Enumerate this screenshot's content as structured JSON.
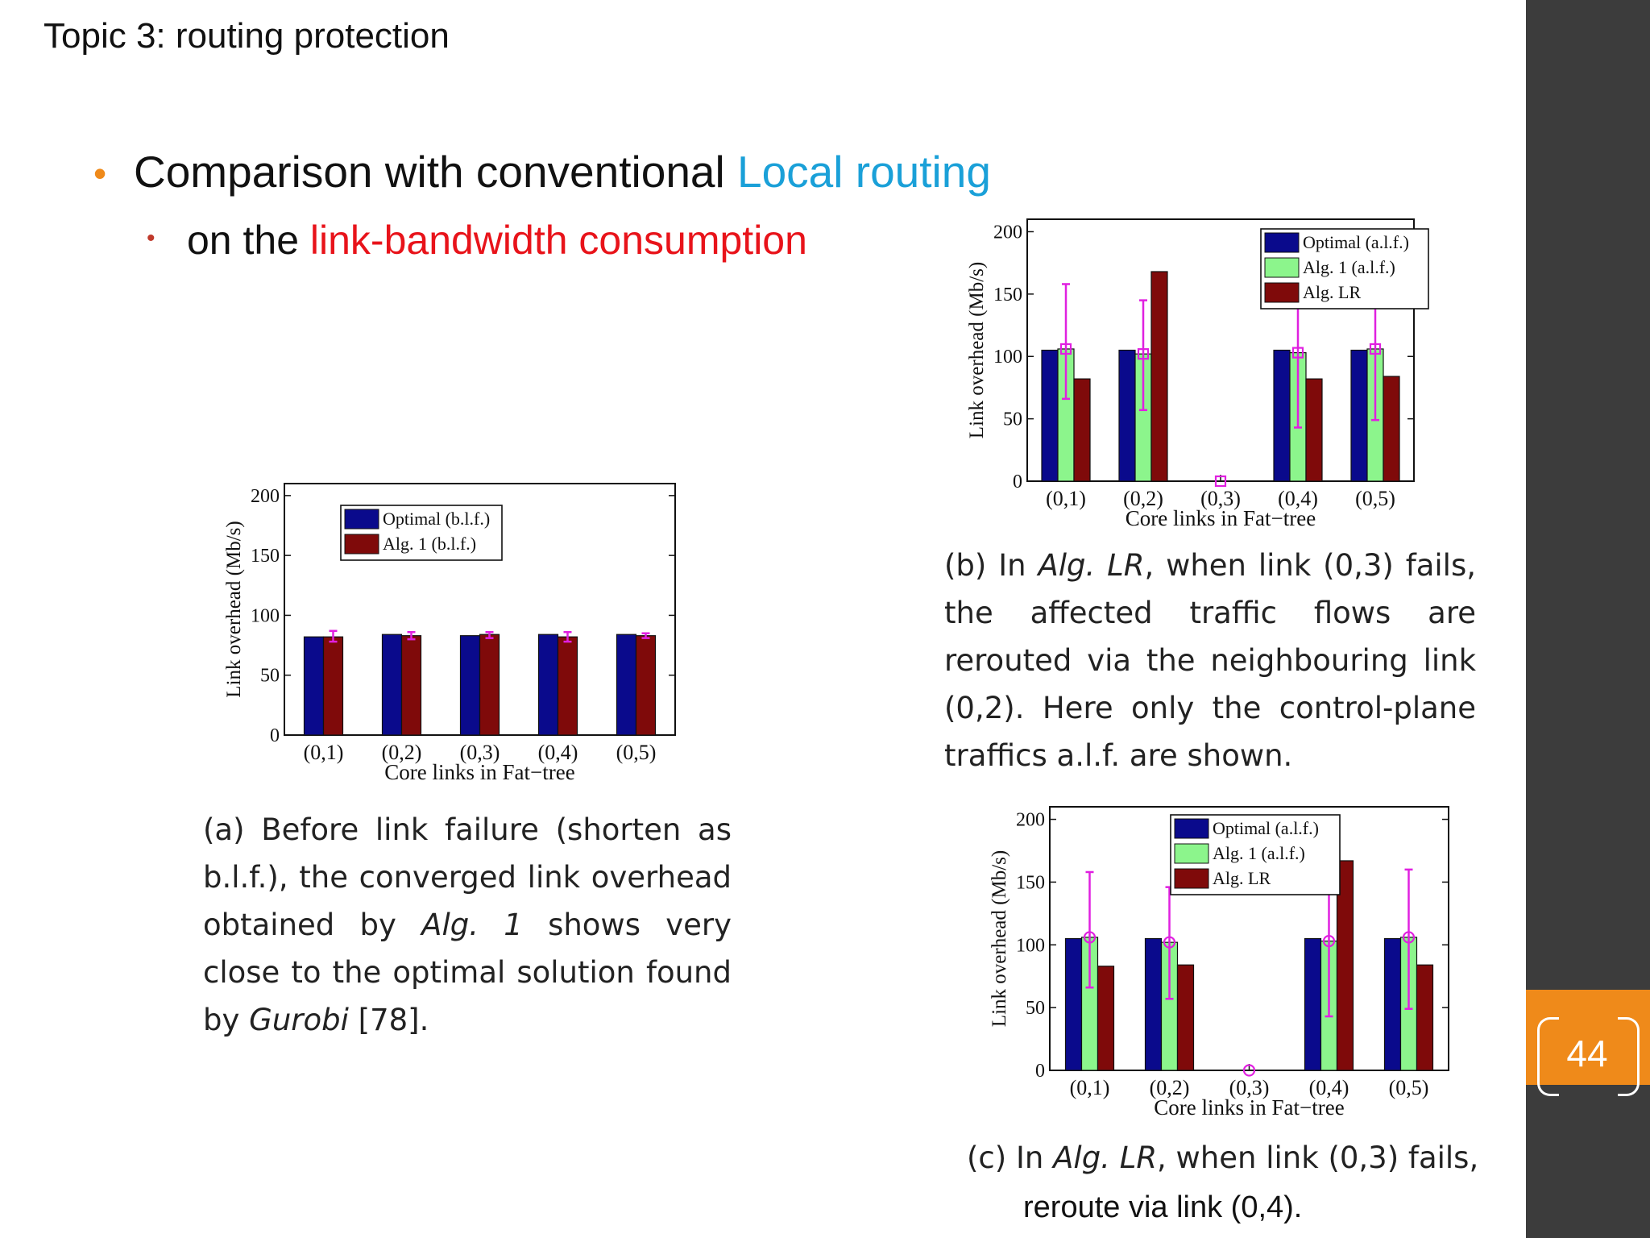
{
  "slide": {
    "topic": "Topic 3:  routing protection",
    "bullet1_prefix": "Comparison with conventional ",
    "bullet1_highlight": "Local routing",
    "bullet2_prefix": "on the ",
    "bullet2_highlight": "link-bandwidth consumption",
    "page_number": "44",
    "colors": {
      "orange": "#ef8a1a",
      "blue_highlight": "#1aa0d8",
      "red_highlight": "#e8131a",
      "sidebar": "#3c3c3c"
    }
  },
  "captions": {
    "a": {
      "p1": "(a) Before link failure (shorten as b.l.f.), the converged link overhead obtained by ",
      "alg": "Alg. 1",
      "p2": " shows very close to the optimal solution found by ",
      "solver": "Gurobi",
      "p3": " [78]."
    },
    "b": {
      "p1": "(b) In ",
      "alg": "Alg. LR",
      "p2": ", when link (0,3) fails, the affected traffic flows are rerouted via the neighbouring link (0,2).  Here only the control-plane traffics a.l.f. are shown."
    },
    "c": {
      "p1": "(c) In ",
      "alg": "Alg. LR",
      "p2": ", when link (0,3) fails,",
      "line2": "reroute via link (0,4)."
    }
  },
  "chart_data": [
    {
      "id": "a",
      "type": "bar",
      "categories": [
        "(0,1)",
        "(0,2)",
        "(0,3)",
        "(0,4)",
        "(0,5)"
      ],
      "xlabel": "Core links in Fat−tree",
      "ylabel": "Link overhead (Mb/s)",
      "ylim": [
        0,
        210
      ],
      "yticks": [
        0,
        50,
        100,
        150,
        200
      ],
      "legend_position": "top-left",
      "series": [
        {
          "name": "Optimal (b.l.f.)",
          "color": "#0a0a8c",
          "values": [
            82,
            84,
            83,
            84,
            84
          ]
        },
        {
          "name": "Alg. 1 (b.l.f.)",
          "color": "#7f0a0a",
          "values": [
            82,
            83,
            84,
            82,
            83
          ],
          "error": [
            [
              78,
              87
            ],
            [
              80,
              86
            ],
            [
              81,
              86
            ],
            [
              78,
              86
            ],
            [
              81,
              85
            ]
          ],
          "error_color": "#e020e0"
        }
      ]
    },
    {
      "id": "b",
      "type": "bar",
      "categories": [
        "(0,1)",
        "(0,2)",
        "(0,3)",
        "(0,4)",
        "(0,5)"
      ],
      "xlabel": "Core links in Fat−tree",
      "ylabel": "Link overhead (Mb/s)",
      "ylim": [
        0,
        210
      ],
      "yticks": [
        0,
        50,
        100,
        150,
        200
      ],
      "legend_position": "top-right",
      "series": [
        {
          "name": "Optimal (a.l.f.)",
          "color": "#0a0a8c",
          "values": [
            105,
            105,
            0,
            105,
            105
          ]
        },
        {
          "name": "Alg. 1 (a.l.f.)",
          "color": "#8cf58c",
          "values": [
            106,
            102,
            0,
            103,
            106
          ],
          "error": [
            [
              66,
              158
            ],
            [
              57,
              145
            ],
            [
              0,
              0
            ],
            [
              43,
              149
            ],
            [
              49,
              159
            ]
          ],
          "error_color": "#e020e0",
          "marker": "square"
        },
        {
          "name": "Alg. LR",
          "color": "#7f0a0a",
          "values": [
            82,
            168,
            0,
            82,
            84
          ]
        }
      ]
    },
    {
      "id": "c",
      "type": "bar",
      "categories": [
        "(0,1)",
        "(0,2)",
        "(0,3)",
        "(0,4)",
        "(0,5)"
      ],
      "xlabel": "Core links in Fat−tree",
      "ylabel": "Link overhead (Mb/s)",
      "ylim": [
        0,
        210
      ],
      "yticks": [
        0,
        50,
        100,
        150,
        200
      ],
      "legend_position": "top-center",
      "series": [
        {
          "name": "Optimal (a.l.f.)",
          "color": "#0a0a8c",
          "values": [
            105,
            105,
            0,
            105,
            105
          ]
        },
        {
          "name": "Alg. 1 (a.l.f.)",
          "color": "#8cf58c",
          "values": [
            106,
            102,
            0,
            103,
            106
          ],
          "error": [
            [
              66,
              158
            ],
            [
              57,
              146
            ],
            [
              0,
              0
            ],
            [
              43,
              150
            ],
            [
              49,
              160
            ]
          ],
          "error_color": "#e020e0",
          "marker": "circle"
        },
        {
          "name": "Alg. LR",
          "color": "#7f0a0a",
          "values": [
            83,
            84,
            0,
            167,
            84
          ]
        }
      ]
    }
  ]
}
